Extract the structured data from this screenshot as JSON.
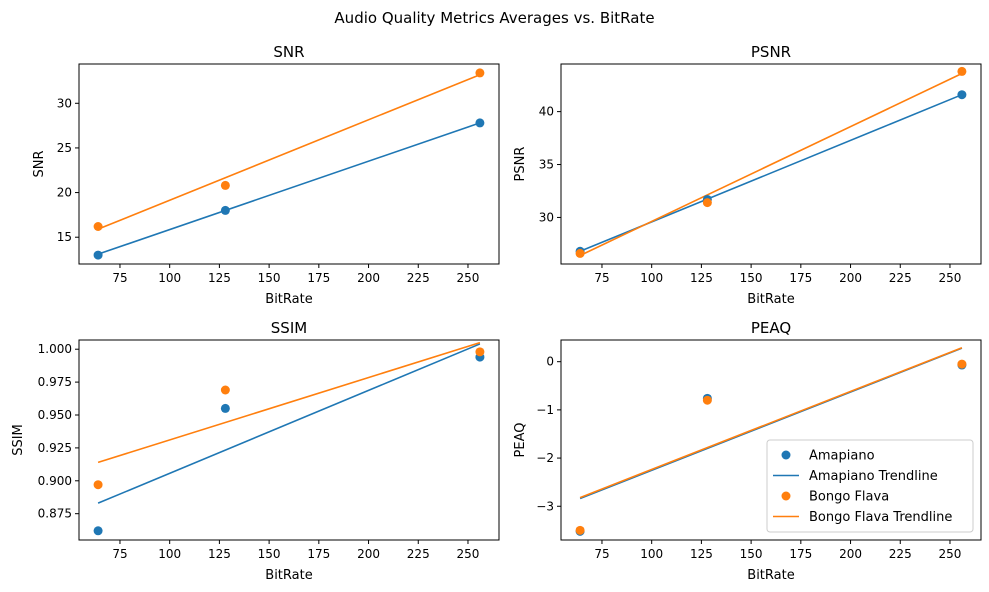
{
  "figure": {
    "title": "Audio Quality Metrics Averages vs. BitRate"
  },
  "legend": {
    "placement": "lower-right",
    "entries": [
      {
        "label": "Amapiano",
        "kind": "marker",
        "color": "#1f77b4"
      },
      {
        "label": "Amapiano Trendline",
        "kind": "line",
        "color": "#1f77b4"
      },
      {
        "label": "Bongo Flava",
        "kind": "marker",
        "color": "#ff7f0e"
      },
      {
        "label": "Bongo Flava Trendline",
        "kind": "line",
        "color": "#ff7f0e"
      }
    ]
  },
  "colors": {
    "amapiano": "#1f77b4",
    "bongo_flava": "#ff7f0e"
  },
  "chart_data": [
    {
      "type": "scatter",
      "title": "SNR",
      "xlabel": "BitRate",
      "ylabel": "SNR",
      "xlim": [
        54.4,
        265.6
      ],
      "ylim": [
        12.0,
        34.4
      ],
      "xticks": [
        75,
        100,
        125,
        150,
        175,
        200,
        225,
        250
      ],
      "yticks": [
        15,
        20,
        25,
        30
      ],
      "series": [
        {
          "name": "Amapiano",
          "x": [
            64,
            128,
            256
          ],
          "y": [
            13.0,
            18.0,
            27.8
          ],
          "trend": [
            [
              64,
              13.1
            ],
            [
              256,
              27.8
            ]
          ]
        },
        {
          "name": "Bongo Flava",
          "x": [
            64,
            128,
            256
          ],
          "y": [
            16.2,
            20.8,
            33.4
          ],
          "trend": [
            [
              64,
              15.9
            ],
            [
              256,
              33.2
            ]
          ]
        }
      ]
    },
    {
      "type": "scatter",
      "title": "PSNR",
      "xlabel": "BitRate",
      "ylabel": "PSNR",
      "xlim": [
        54.4,
        265.6
      ],
      "ylim": [
        25.6,
        44.5
      ],
      "xticks": [
        75,
        100,
        125,
        150,
        175,
        200,
        225,
        250
      ],
      "yticks": [
        30,
        35,
        40
      ],
      "series": [
        {
          "name": "Amapiano",
          "x": [
            64,
            128,
            256
          ],
          "y": [
            26.8,
            31.7,
            41.6
          ],
          "trend": [
            [
              64,
              26.8
            ],
            [
              256,
              41.6
            ]
          ]
        },
        {
          "name": "Bongo Flava",
          "x": [
            64,
            128,
            256
          ],
          "y": [
            26.6,
            31.4,
            43.8
          ],
          "trend": [
            [
              64,
              26.4
            ],
            [
              256,
              43.6
            ]
          ]
        }
      ]
    },
    {
      "type": "scatter",
      "title": "SSIM",
      "xlabel": "BitRate",
      "ylabel": "SSIM",
      "xlim": [
        54.4,
        265.6
      ],
      "ylim": [
        0.855,
        1.007
      ],
      "xticks": [
        75,
        100,
        125,
        150,
        175,
        200,
        225,
        250
      ],
      "yticks": [
        0.875,
        0.9,
        0.925,
        0.95,
        0.975,
        1.0
      ],
      "ytick_labels": [
        "0.875",
        "0.900",
        "0.925",
        "0.950",
        "0.975",
        "1.000"
      ],
      "series": [
        {
          "name": "Amapiano",
          "x": [
            64,
            128,
            256
          ],
          "y": [
            0.862,
            0.955,
            0.994
          ],
          "trend": [
            [
              64,
              0.883
            ],
            [
              256,
              1.004
            ]
          ]
        },
        {
          "name": "Bongo Flava",
          "x": [
            64,
            128,
            256
          ],
          "y": [
            0.897,
            0.969,
            0.998
          ],
          "trend": [
            [
              64,
              0.914
            ],
            [
              256,
              1.005
            ]
          ]
        }
      ]
    },
    {
      "type": "scatter",
      "title": "PEAQ",
      "xlabel": "BitRate",
      "ylabel": "PEAQ",
      "xlim": [
        54.4,
        265.6
      ],
      "ylim": [
        -3.7,
        0.45
      ],
      "xticks": [
        75,
        100,
        125,
        150,
        175,
        200,
        225,
        250
      ],
      "yticks": [
        -3,
        -2,
        -1,
        0
      ],
      "ytick_labels": [
        "−3",
        "−2",
        "−1",
        "0"
      ],
      "series": [
        {
          "name": "Amapiano",
          "x": [
            64,
            128,
            256
          ],
          "y": [
            -3.52,
            -0.76,
            -0.07
          ],
          "trend": [
            [
              64,
              -2.84
            ],
            [
              256,
              0.28
            ]
          ]
        },
        {
          "name": "Bongo Flava",
          "x": [
            64,
            128,
            256
          ],
          "y": [
            -3.5,
            -0.8,
            -0.05
          ],
          "trend": [
            [
              64,
              -2.82
            ],
            [
              256,
              0.29
            ]
          ]
        }
      ]
    }
  ]
}
